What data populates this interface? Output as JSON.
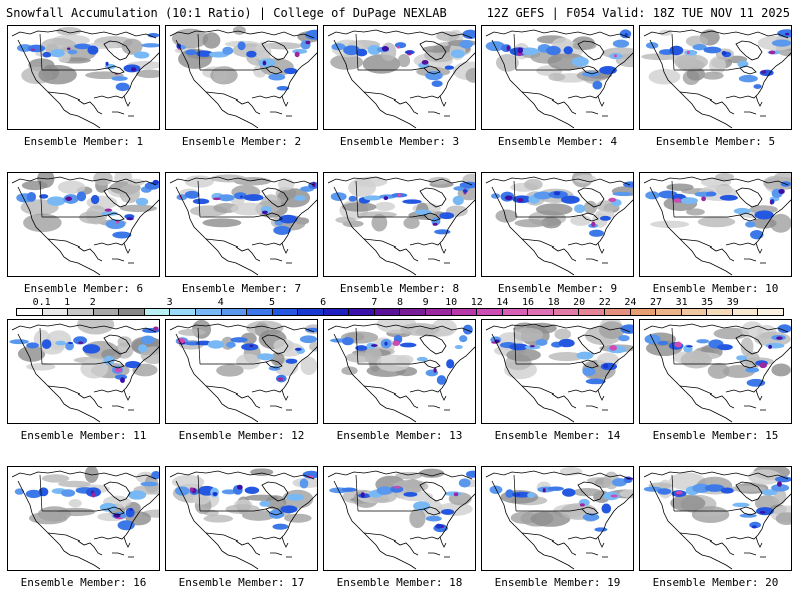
{
  "header": {
    "left": "Snowfall Accumulation (10:1 Ratio) | College of DuPage NEXLAB",
    "right": "12Z GEFS | F054 Valid: 18Z TUE NOV 11 2025"
  },
  "members": [
    {
      "label": "Ensemble Member: 1"
    },
    {
      "label": "Ensemble Member: 2"
    },
    {
      "label": "Ensemble Member: 3"
    },
    {
      "label": "Ensemble Member: 4"
    },
    {
      "label": "Ensemble Member: 5"
    },
    {
      "label": "Ensemble Member: 6"
    },
    {
      "label": "Ensemble Member: 7"
    },
    {
      "label": "Ensemble Member: 8"
    },
    {
      "label": "Ensemble Member: 9"
    },
    {
      "label": "Ensemble Member: 10"
    },
    {
      "label": "Ensemble Member: 11"
    },
    {
      "label": "Ensemble Member: 12"
    },
    {
      "label": "Ensemble Member: 13"
    },
    {
      "label": "Ensemble Member: 14"
    },
    {
      "label": "Ensemble Member: 15"
    },
    {
      "label": "Ensemble Member: 16"
    },
    {
      "label": "Ensemble Member: 17"
    },
    {
      "label": "Ensemble Member: 18"
    },
    {
      "label": "Ensemble Member: 19"
    },
    {
      "label": "Ensemble Member: 20"
    }
  ],
  "colorbar": {
    "labels": [
      "0.1",
      "1",
      "2",
      "3",
      "4",
      "5",
      "6",
      "7",
      "8",
      "9",
      "10",
      "12",
      "14",
      "16",
      "18",
      "20",
      "22",
      "24",
      "27",
      "31",
      "35",
      "39"
    ],
    "colors": [
      "#ffffff",
      "#e8e8e8",
      "#c8c8c8",
      "#a8a8a8",
      "#888888",
      "#b8f0f4",
      "#98d8f8",
      "#78b8f4",
      "#5a98ee",
      "#3c78e8",
      "#2458e0",
      "#1838d0",
      "#2020c0",
      "#3a10a8",
      "#5a1098",
      "#7a1c98",
      "#9a28a0",
      "#b838aa",
      "#cc4cb4",
      "#d860b8",
      "#e070b4",
      "#e27aa8",
      "#e48494",
      "#e69080",
      "#e8a070",
      "#ecb488",
      "#f0c8a0",
      "#f4dab8",
      "#f8e8d0",
      "#fbf2e4"
    ]
  }
}
